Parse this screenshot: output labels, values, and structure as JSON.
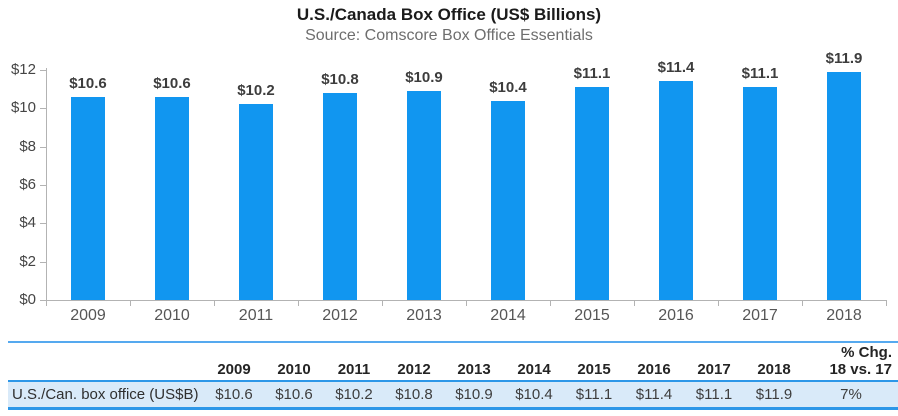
{
  "header": {
    "title": "U.S./Canada Box Office (US$ Billions)",
    "subtitle": "Source: Comscore Box Office Essentials"
  },
  "chart_data": {
    "type": "bar",
    "title": "U.S./Canada Box Office (US$ Billions)",
    "subtitle": "Source: Comscore Box Office Essentials",
    "categories": [
      "2009",
      "2010",
      "2011",
      "2012",
      "2013",
      "2014",
      "2015",
      "2016",
      "2017",
      "2018"
    ],
    "values": [
      10.6,
      10.6,
      10.2,
      10.8,
      10.9,
      10.4,
      11.1,
      11.4,
      11.1,
      11.9
    ],
    "value_labels": [
      "$10.6",
      "$10.6",
      "$10.2",
      "$10.8",
      "$10.9",
      "$10.4",
      "$11.1",
      "$11.4",
      "$11.1",
      "$11.9"
    ],
    "xlabel": "",
    "ylabel": "",
    "ylim": [
      0,
      12
    ],
    "y_ticks": [
      "$0",
      "$2",
      "$4",
      "$6",
      "$8",
      "$10",
      "$12"
    ],
    "y_tick_values": [
      0,
      2,
      4,
      6,
      8,
      10,
      12
    ],
    "grid": false,
    "legend": "none",
    "bar_color": "#1196f0"
  },
  "table": {
    "row_label": "U.S./Can. box office (US$B)",
    "year_headers": [
      "2009",
      "2010",
      "2011",
      "2012",
      "2013",
      "2014",
      "2015",
      "2016",
      "2017",
      "2018"
    ],
    "pct_chg_header_line1": "% Chg.",
    "pct_chg_header_line2": "18 vs. 17",
    "values": [
      "$10.6",
      "$10.6",
      "$10.2",
      "$10.8",
      "$10.9",
      "$10.4",
      "$11.1",
      "$11.4",
      "$11.1",
      "$11.9"
    ],
    "pct_chg_value": "7%"
  },
  "colors": {
    "bar": "#1196f0",
    "table_top_line": "#55a9ef",
    "table_line": "#2d97e8",
    "row_background": "#d9eaf9",
    "axis": "#b3b3b3"
  }
}
